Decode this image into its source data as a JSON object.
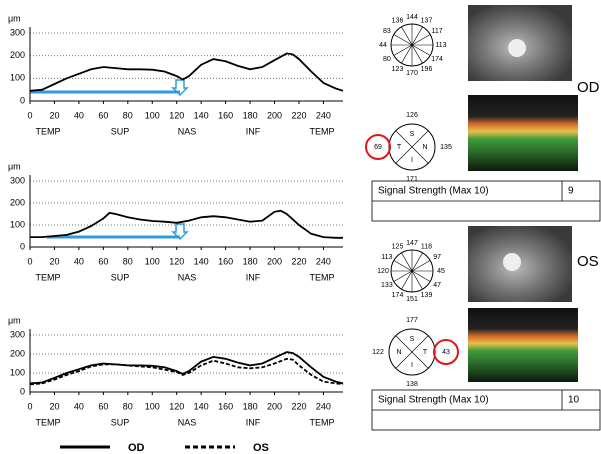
{
  "chart_data": [
    {
      "type": "line",
      "y_label": "μm",
      "regions": [
        "TEMP",
        "SUP",
        "NAS",
        "INF",
        "TEMP"
      ],
      "x": [
        0,
        10,
        20,
        30,
        40,
        50,
        60,
        70,
        80,
        90,
        100,
        110,
        120,
        125,
        130,
        140,
        150,
        160,
        170,
        180,
        190,
        200,
        210,
        215,
        220,
        230,
        240,
        250,
        256
      ],
      "series": [
        {
          "color": "#000000",
          "style": "solid",
          "values": [
            45,
            50,
            75,
            100,
            120,
            140,
            150,
            145,
            140,
            140,
            138,
            130,
            110,
            95,
            110,
            160,
            185,
            175,
            155,
            140,
            150,
            180,
            210,
            205,
            185,
            130,
            80,
            55,
            45
          ]
        }
      ],
      "xlim": [
        0,
        256
      ],
      "ylim": [
        0,
        300
      ],
      "xticks": [
        0,
        20,
        40,
        60,
        80,
        100,
        120,
        140,
        160,
        180,
        200,
        220,
        240
      ],
      "yticks": [
        0,
        100,
        200,
        300
      ],
      "grid": true
    },
    {
      "type": "line",
      "y_label": "μm",
      "regions": [
        "TEMP",
        "SUP",
        "NAS",
        "INF",
        "TEMP"
      ],
      "x": [
        0,
        10,
        20,
        30,
        40,
        50,
        60,
        65,
        70,
        80,
        90,
        100,
        110,
        120,
        130,
        140,
        150,
        160,
        170,
        180,
        190,
        200,
        205,
        210,
        220,
        230,
        240,
        250,
        256
      ],
      "series": [
        {
          "color": "#000000",
          "style": "solid",
          "values": [
            45,
            45,
            50,
            55,
            70,
            95,
            130,
            155,
            150,
            135,
            125,
            118,
            115,
            110,
            120,
            135,
            140,
            135,
            125,
            115,
            120,
            160,
            165,
            150,
            100,
            60,
            45,
            42,
            42
          ]
        }
      ],
      "xlim": [
        0,
        256
      ],
      "ylim": [
        0,
        300
      ],
      "xticks": [
        0,
        20,
        40,
        60,
        80,
        100,
        120,
        140,
        160,
        180,
        200,
        220,
        240
      ],
      "yticks": [
        0,
        100,
        200,
        300
      ],
      "grid": true
    },
    {
      "type": "line",
      "y_label": "μm",
      "regions": [
        "TEMP",
        "SUP",
        "NAS",
        "INF",
        "TEMP"
      ],
      "x": [
        0,
        10,
        20,
        30,
        40,
        50,
        60,
        70,
        80,
        90,
        100,
        110,
        120,
        125,
        130,
        140,
        150,
        160,
        170,
        180,
        190,
        200,
        210,
        215,
        220,
        230,
        240,
        250,
        256
      ],
      "series": [
        {
          "name": "OD",
          "color": "#000000",
          "style": "solid",
          "values": [
            45,
            50,
            75,
            100,
            120,
            140,
            150,
            145,
            140,
            140,
            138,
            130,
            110,
            95,
            110,
            160,
            185,
            175,
            155,
            140,
            150,
            180,
            210,
            205,
            185,
            130,
            80,
            55,
            45
          ]
        },
        {
          "name": "OS",
          "color": "#000000",
          "style": "dashed",
          "values": [
            40,
            45,
            65,
            90,
            110,
            135,
            145,
            145,
            140,
            135,
            130,
            118,
            105,
            90,
            100,
            140,
            165,
            150,
            130,
            125,
            130,
            150,
            175,
            170,
            140,
            90,
            55,
            45,
            42
          ]
        }
      ],
      "xlim": [
        0,
        256
      ],
      "ylim": [
        0,
        300
      ],
      "xticks": [
        0,
        20,
        40,
        60,
        80,
        100,
        120,
        140,
        160,
        180,
        200,
        220,
        240
      ],
      "yticks": [
        0,
        100,
        200,
        300
      ],
      "grid": true
    }
  ],
  "eyes": [
    {
      "label": "OD",
      "clock": [
        "144",
        "137",
        "117",
        "113",
        "174",
        "196",
        "170",
        "123",
        "80",
        "44",
        "83",
        "136"
      ],
      "quadrants": [
        {
          "letter": "S",
          "value": "126"
        },
        {
          "letter": "N",
          "value": "135"
        },
        {
          "letter": "I",
          "value": "171"
        },
        {
          "letter": "T",
          "value": "69"
        }
      ],
      "signal_label": "Signal Strength (Max 10)",
      "signal_value": "9"
    },
    {
      "label": "OS",
      "clock": [
        "147",
        "118",
        "97",
        "45",
        "47",
        "139",
        "151",
        "174",
        "133",
        "120",
        "113",
        "125"
      ],
      "quadrants": [
        {
          "letter": "S",
          "value": "177"
        },
        {
          "letter": "N",
          "value": "122"
        },
        {
          "letter": "I",
          "value": "138"
        },
        {
          "letter": "T",
          "value": "43"
        }
      ],
      "signal_label": "Signal Strength (Max 10)",
      "signal_value": "10"
    }
  ]
}
